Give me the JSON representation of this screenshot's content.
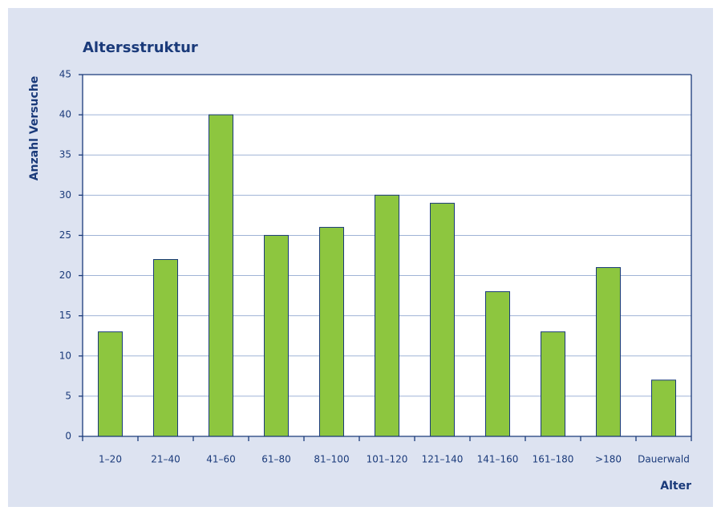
{
  "chart_data": {
    "type": "bar",
    "title": "Altersstruktur",
    "x_label": "Alter",
    "y_label": "Anzahl Versuche",
    "categories": [
      "1–20",
      "21–40",
      "41–60",
      "61–80",
      "81–100",
      "101–120",
      "121–140",
      "141–160",
      "161–180",
      ">180",
      "Dauerwald"
    ],
    "values": [
      13,
      22,
      40,
      25,
      26,
      30,
      29,
      18,
      13,
      21,
      7
    ],
    "color": "#8dc63f",
    "ylim": [
      0,
      45
    ],
    "yticks": [
      0,
      5,
      10,
      15,
      20,
      25,
      30,
      35,
      40,
      45
    ],
    "grid": true
  }
}
